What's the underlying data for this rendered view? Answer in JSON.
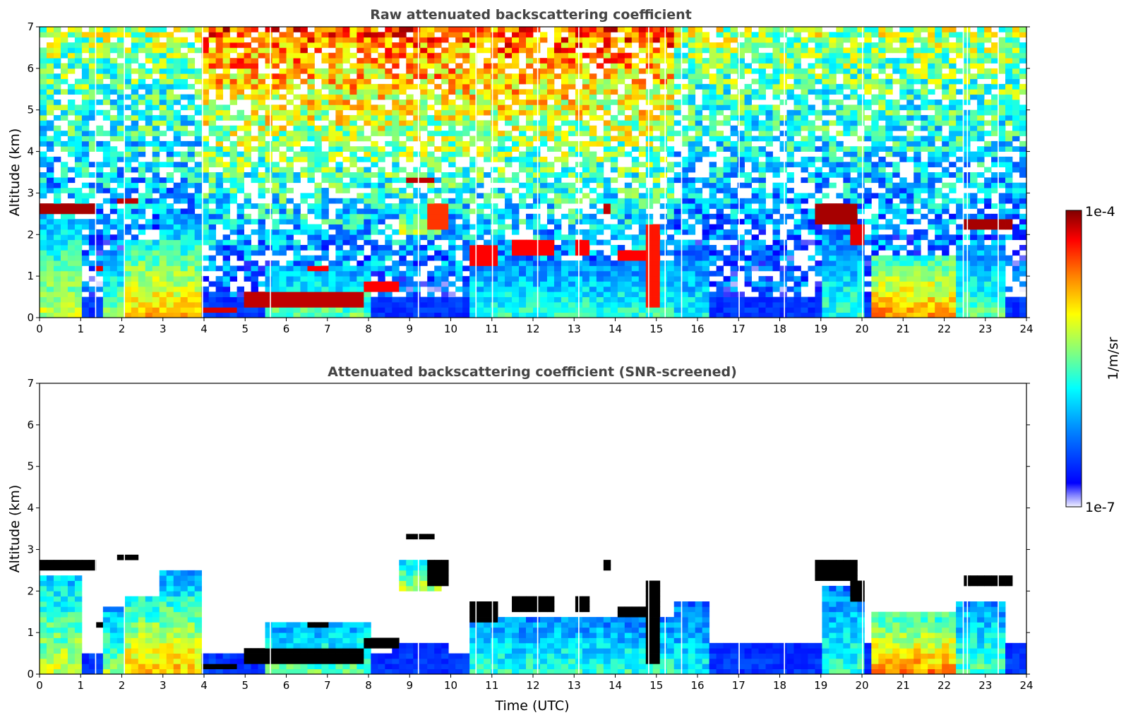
{
  "colors": {
    "colormap": [
      "#ffffff",
      "#0000ff",
      "#0080ff",
      "#00ffff",
      "#80ff80",
      "#ffff00",
      "#ff8000",
      "#ff0000",
      "#800000"
    ],
    "axis": "#000000",
    "title": "#444444"
  },
  "colorbar": {
    "label": "1/m/sr",
    "max_label": "1e-4",
    "min_label": "1e-7",
    "scale": "log"
  },
  "chart_data": [
    {
      "type": "heatmap",
      "title": "Raw attenuated backscattering coefficient",
      "xlabel": "",
      "ylabel": "Altitude (km)",
      "xlim": [
        0,
        24
      ],
      "ylim": [
        0,
        7
      ],
      "xticks": [
        "0",
        "1",
        "2",
        "3",
        "4",
        "5",
        "6",
        "7",
        "8",
        "9",
        "10",
        "11",
        "12",
        "13",
        "14",
        "15",
        "16",
        "17",
        "18",
        "19",
        "20",
        "21",
        "22",
        "23",
        "24"
      ],
      "yticks": [
        "0",
        "1",
        "2",
        "3",
        "4",
        "5",
        "6",
        "7"
      ],
      "screened": false
    },
    {
      "type": "heatmap",
      "title": "Attenuated backscattering coefficient (SNR-screened)",
      "xlabel": "Time (UTC)",
      "ylabel": "Altitude (km)",
      "xlim": [
        0,
        24
      ],
      "ylim": [
        0,
        7
      ],
      "xticks": [
        "0",
        "1",
        "2",
        "3",
        "4",
        "5",
        "6",
        "7",
        "8",
        "9",
        "10",
        "11",
        "12",
        "13",
        "14",
        "15",
        "16",
        "17",
        "18",
        "19",
        "20",
        "21",
        "22",
        "23",
        "24"
      ],
      "yticks": [
        "0",
        "1",
        "2",
        "3",
        "4",
        "5",
        "6",
        "7"
      ],
      "screened": true
    }
  ]
}
